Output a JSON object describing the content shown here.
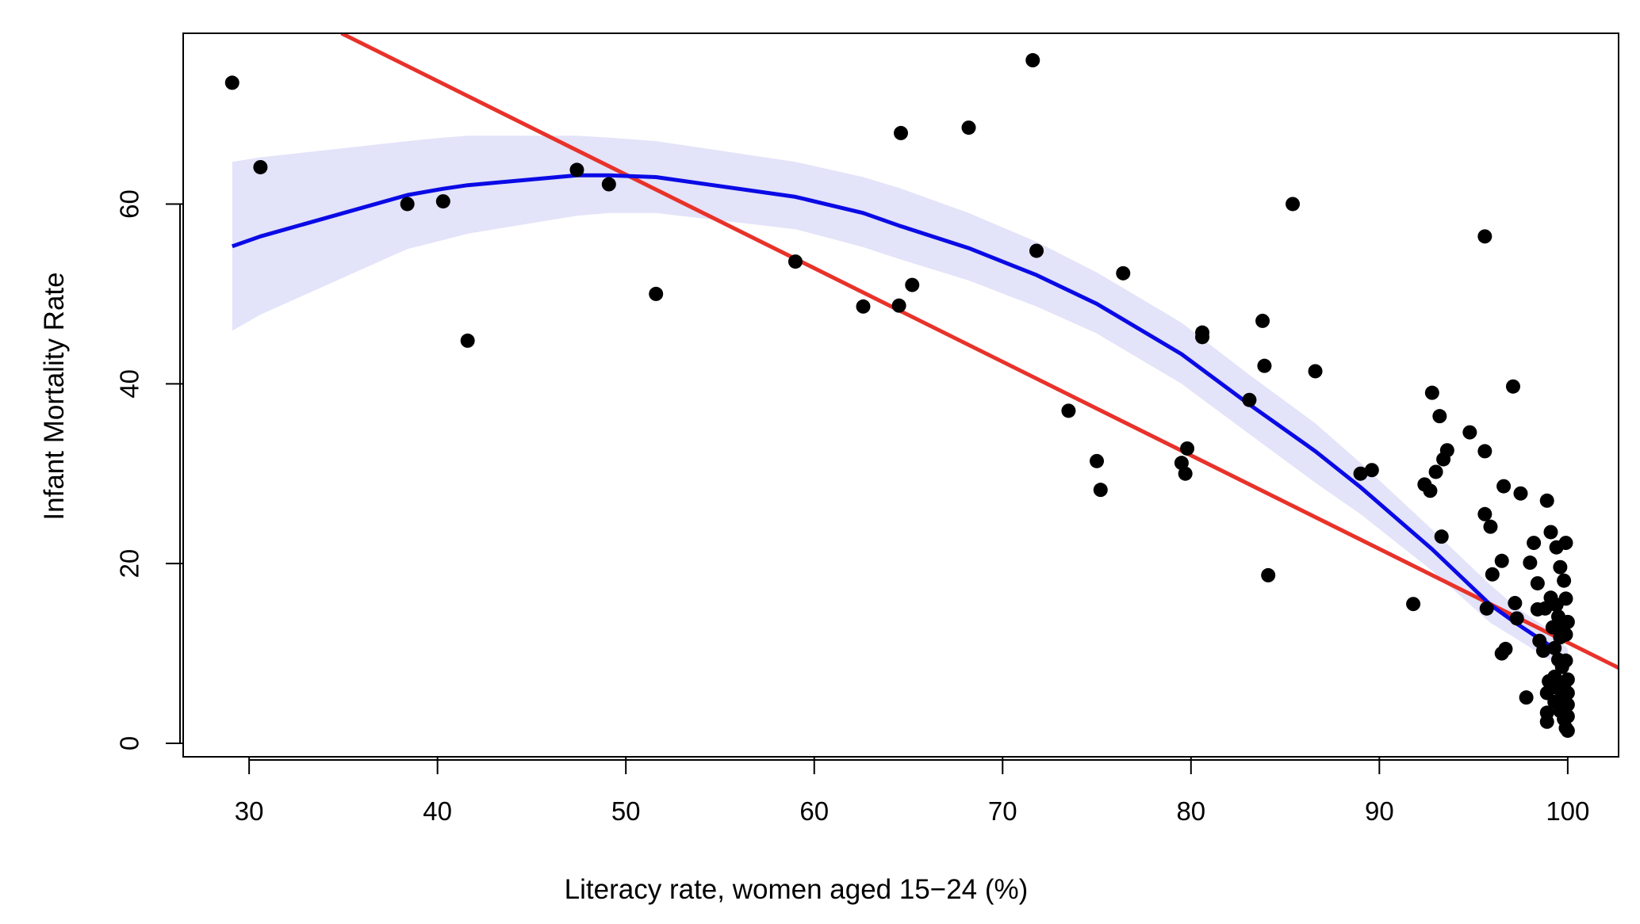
{
  "chart_data": {
    "type": "scatter",
    "title": "",
    "xlabel": "Literacy rate, women aged 15−24 (%)",
    "ylabel": "Infant Mortality Rate",
    "xlim": [
      26.5,
      102.7
    ],
    "ylim": [
      -1.5,
      79
    ],
    "x_ticks": [
      30,
      40,
      50,
      60,
      70,
      80,
      90,
      100
    ],
    "y_ticks": [
      0,
      20,
      40,
      60
    ],
    "x_tick_labels": [
      "30",
      "40",
      "50",
      "60",
      "70",
      "80",
      "90",
      "100"
    ],
    "y_tick_labels": [
      "0",
      "20",
      "40",
      "60"
    ],
    "grid": false,
    "legend": "none",
    "colors": {
      "points": "#000000",
      "linear_fit": "#e8322a",
      "smooth_fit": "#0a0ae6",
      "confidence_band": "#e3e3f9"
    },
    "points": [
      [
        29.1,
        73.5
      ],
      [
        30.6,
        64.1
      ],
      [
        38.4,
        60.0
      ],
      [
        40.3,
        60.3
      ],
      [
        41.6,
        44.8
      ],
      [
        47.4,
        63.8
      ],
      [
        49.1,
        62.2
      ],
      [
        51.6,
        50.0
      ],
      [
        59.0,
        53.6
      ],
      [
        62.6,
        48.6
      ],
      [
        64.5,
        48.7
      ],
      [
        64.6,
        67.9
      ],
      [
        65.2,
        51.0
      ],
      [
        68.2,
        68.5
      ],
      [
        71.6,
        76.0
      ],
      [
        71.8,
        54.8
      ],
      [
        73.5,
        37.0
      ],
      [
        75.0,
        31.4
      ],
      [
        75.2,
        28.2
      ],
      [
        76.4,
        52.3
      ],
      [
        79.5,
        31.2
      ],
      [
        79.7,
        30.0
      ],
      [
        79.8,
        32.8
      ],
      [
        80.6,
        45.2
      ],
      [
        80.6,
        45.7
      ],
      [
        83.1,
        38.2
      ],
      [
        83.8,
        47.0
      ],
      [
        83.9,
        42.0
      ],
      [
        84.1,
        18.7
      ],
      [
        85.4,
        60.0
      ],
      [
        86.6,
        41.4
      ],
      [
        89.0,
        30.0
      ],
      [
        89.6,
        30.4
      ],
      [
        91.8,
        15.5
      ],
      [
        92.4,
        28.8
      ],
      [
        92.7,
        28.1
      ],
      [
        92.8,
        39.0
      ],
      [
        93.0,
        30.2
      ],
      [
        93.2,
        36.4
      ],
      [
        93.3,
        23.0
      ],
      [
        93.4,
        31.6
      ],
      [
        93.6,
        32.6
      ],
      [
        94.8,
        34.6
      ],
      [
        95.6,
        56.4
      ],
      [
        95.6,
        32.5
      ],
      [
        95.6,
        25.5
      ],
      [
        95.7,
        15.0
      ],
      [
        95.9,
        24.1
      ],
      [
        96.0,
        18.8
      ],
      [
        96.5,
        20.3
      ],
      [
        96.5,
        10.0
      ],
      [
        96.6,
        28.6
      ],
      [
        96.7,
        10.5
      ],
      [
        97.1,
        39.7
      ],
      [
        97.2,
        15.6
      ],
      [
        97.3,
        13.9
      ],
      [
        97.5,
        27.8
      ],
      [
        97.8,
        5.1
      ],
      [
        98.0,
        20.1
      ],
      [
        98.2,
        22.3
      ],
      [
        98.4,
        17.8
      ],
      [
        98.4,
        14.9
      ],
      [
        98.5,
        11.4
      ],
      [
        98.7,
        10.3
      ],
      [
        98.8,
        15.0
      ],
      [
        98.9,
        27.0
      ],
      [
        98.9,
        2.4
      ],
      [
        98.9,
        3.4
      ],
      [
        98.9,
        5.6
      ],
      [
        99.0,
        6.9
      ],
      [
        99.1,
        23.5
      ],
      [
        99.1,
        16.2
      ],
      [
        99.2,
        12.9
      ],
      [
        99.3,
        10.6
      ],
      [
        99.3,
        4.6
      ],
      [
        99.3,
        7.4
      ],
      [
        99.4,
        21.8
      ],
      [
        99.4,
        15.4
      ],
      [
        99.5,
        14.1
      ],
      [
        99.5,
        9.3
      ],
      [
        99.5,
        6.1
      ],
      [
        99.6,
        19.6
      ],
      [
        99.6,
        11.8
      ],
      [
        99.6,
        3.6
      ],
      [
        99.7,
        13.2
      ],
      [
        99.7,
        8.5
      ],
      [
        99.8,
        18.1
      ],
      [
        99.8,
        5.0
      ],
      [
        99.8,
        2.7
      ],
      [
        99.9,
        16.1
      ],
      [
        99.9,
        22.3
      ],
      [
        99.9,
        12.1
      ],
      [
        99.9,
        9.2
      ],
      [
        99.9,
        1.7
      ],
      [
        99.9,
        6.9
      ],
      [
        100.0,
        13.5
      ],
      [
        100.0,
        4.3
      ],
      [
        100.0,
        7.1
      ],
      [
        100.0,
        3.0
      ],
      [
        100.0,
        1.4
      ],
      [
        100.0,
        5.6
      ]
    ],
    "linear_fit": {
      "x": [
        34.9,
        102.7
      ],
      "y": [
        79.0,
        8.4
      ]
    },
    "smooth_fit": {
      "x": [
        29.1,
        30.6,
        38.4,
        40.3,
        41.6,
        47.4,
        49.1,
        51.6,
        59.0,
        62.6,
        64.5,
        68.2,
        71.8,
        75.0,
        79.5,
        83.1,
        86.6,
        89.0,
        92.8,
        95.9,
        97.3,
        99.1,
        100.0
      ],
      "y": [
        55.3,
        56.4,
        61.0,
        61.7,
        62.1,
        63.2,
        63.2,
        63.0,
        60.8,
        59.0,
        57.6,
        55.1,
        52.1,
        48.9,
        43.3,
        37.7,
        32.5,
        28.5,
        21.6,
        15.4,
        13.3,
        10.8,
        8.6
      ]
    },
    "confidence_band": {
      "x": [
        29.1,
        30.6,
        38.4,
        40.3,
        41.6,
        47.4,
        49.1,
        51.6,
        59.0,
        62.6,
        64.5,
        68.2,
        71.8,
        75.0,
        79.5,
        83.1,
        86.6,
        89.0,
        92.8,
        95.9,
        97.3,
        99.1,
        100.0
      ],
      "upper": [
        64.7,
        65.2,
        67.0,
        67.4,
        67.6,
        67.6,
        67.4,
        67.0,
        64.7,
        63.0,
        61.8,
        59.0,
        55.8,
        52.4,
        46.8,
        41.0,
        35.6,
        31.2,
        23.8,
        17.6,
        15.1,
        12.5,
        10.5
      ],
      "lower": [
        45.9,
        47.7,
        55.0,
        56.0,
        56.7,
        58.7,
        59.0,
        59.0,
        57.2,
        55.2,
        53.9,
        51.5,
        48.6,
        45.6,
        40.0,
        34.4,
        29.0,
        25.5,
        19.2,
        13.4,
        11.6,
        9.2,
        7.4
      ]
    }
  }
}
